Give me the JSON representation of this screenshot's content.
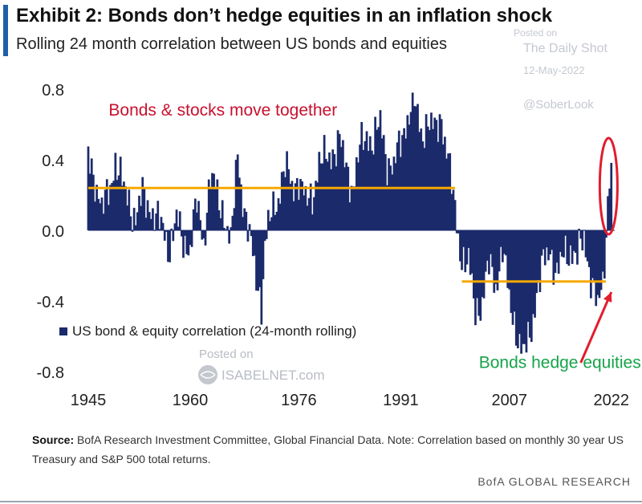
{
  "header": {
    "title": "Exhibit 2: Bonds don’t hedge equities in an inflation shock",
    "subtitle": "Rolling 24 month correlation between US bonds and equities"
  },
  "watermarks": {
    "posted_on": "Posted on",
    "site": "The Daily Shot",
    "date": "12-May-2022",
    "handle": "@SoberLook",
    "posted_on_2": "Posted on",
    "isabelnet": "ISABELNET.com"
  },
  "chart_data": {
    "type": "bar",
    "title": "Rolling 24 month correlation between US bonds and equities",
    "ylim": [
      -0.8,
      0.8
    ],
    "yticks": [
      0.8,
      0.4,
      0.0,
      -0.4,
      -0.8
    ],
    "ytick_labels": [
      "0.8",
      "0.4",
      "0.0",
      "-0.4",
      "-0.8"
    ],
    "xlim": [
      1945,
      2022.5
    ],
    "xticks": [
      1945,
      1960,
      1976,
      1991,
      2007,
      2022
    ],
    "xtick_labels": [
      "1945",
      "1960",
      "1976",
      "1991",
      "2007",
      "2022"
    ],
    "legend": "US bond & equity correlation (24-month rolling)",
    "bar_color": "#1b2a6b",
    "step_years": 0.25,
    "series": [
      {
        "name": "US bond & equity correlation (24-month rolling)",
        "keyframes": [
          [
            1945,
            0.42
          ],
          [
            1946,
            0.3
          ],
          [
            1947,
            0.1
          ],
          [
            1948,
            0.22
          ],
          [
            1949,
            0.4
          ],
          [
            1950,
            0.25
          ],
          [
            1951,
            0.18
          ],
          [
            1952,
            0.05
          ],
          [
            1953,
            0.2
          ],
          [
            1954,
            0.15
          ],
          [
            1955,
            0.05
          ],
          [
            1956,
            0.02
          ],
          [
            1957,
            -0.1
          ],
          [
            1958,
            0.05
          ],
          [
            1959,
            -0.05
          ],
          [
            1960,
            -0.1
          ],
          [
            1961,
            0.15
          ],
          [
            1962,
            -0.05
          ],
          [
            1963,
            0.3
          ],
          [
            1964,
            0.2
          ],
          [
            1965,
            0.1
          ],
          [
            1966,
            -0.1
          ],
          [
            1967,
            0.45
          ],
          [
            1968,
            0.1
          ],
          [
            1969,
            -0.1
          ],
          [
            1970,
            -0.3
          ],
          [
            1970.5,
            -0.42
          ],
          [
            1971,
            -0.1
          ],
          [
            1972,
            0.1
          ],
          [
            1973,
            0.2
          ],
          [
            1974,
            0.35
          ],
          [
            1975,
            0.25
          ],
          [
            1976,
            0.3
          ],
          [
            1977,
            0.15
          ],
          [
            1978,
            0.2
          ],
          [
            1979,
            0.38
          ],
          [
            1980,
            0.4
          ],
          [
            1981,
            0.45
          ],
          [
            1982,
            0.5
          ],
          [
            1983,
            0.35
          ],
          [
            1984,
            0.25
          ],
          [
            1985,
            0.45
          ],
          [
            1986,
            0.55
          ],
          [
            1987,
            0.5
          ],
          [
            1988,
            0.6
          ],
          [
            1989,
            0.4
          ],
          [
            1990,
            0.35
          ],
          [
            1991,
            0.5
          ],
          [
            1992,
            0.65
          ],
          [
            1993,
            0.72
          ],
          [
            1994,
            0.55
          ],
          [
            1995,
            0.62
          ],
          [
            1996,
            0.55
          ],
          [
            1997,
            0.65
          ],
          [
            1998,
            0.4
          ],
          [
            1999,
            0.1
          ],
          [
            2000,
            -0.15
          ],
          [
            2001,
            -0.2
          ],
          [
            2002,
            -0.45
          ],
          [
            2003,
            -0.4
          ],
          [
            2004,
            -0.2
          ],
          [
            2005,
            -0.3
          ],
          [
            2006,
            -0.1
          ],
          [
            2007,
            -0.4
          ],
          [
            2008,
            -0.55
          ],
          [
            2009,
            -0.72
          ],
          [
            2010,
            -0.6
          ],
          [
            2011,
            -0.35
          ],
          [
            2012,
            -0.2
          ],
          [
            2013,
            -0.1
          ],
          [
            2014,
            -0.25
          ],
          [
            2015,
            -0.15
          ],
          [
            2016,
            -0.1
          ],
          [
            2017,
            -0.15
          ],
          [
            2018,
            -0.05
          ],
          [
            2019,
            -0.25
          ],
          [
            2020,
            -0.45
          ],
          [
            2020.8,
            -0.3
          ],
          [
            2021.3,
            0.05
          ],
          [
            2021.8,
            0.35
          ],
          [
            2022.2,
            0.38
          ]
        ]
      }
    ],
    "reference_lines": [
      {
        "label": "Bonds & stocks move together",
        "y": 0.24,
        "x_start": 1945,
        "x_end": 1999,
        "color": "#f5a800"
      },
      {
        "label": "Bonds hedge equities",
        "y": -0.29,
        "x_start": 2000,
        "x_end": 2021.2,
        "color": "#f5a800"
      }
    ],
    "annotations": [
      {
        "text": "Bonds & stocks move together",
        "color": "#c8102e",
        "anchor_x": 1948,
        "anchor_y": 0.65
      },
      {
        "text": "Bonds hedge equities",
        "color": "#16a34a",
        "anchor_x": 2002.5,
        "anchor_y": -0.78
      }
    ],
    "highlight": {
      "shape": "ellipse",
      "color": "#e11d2e",
      "x": 2021.6,
      "y": 0.25
    },
    "arrow": {
      "color": "#e11d2e",
      "from": [
        2017.5,
        -0.75
      ],
      "to": [
        2022,
        -0.35
      ]
    }
  },
  "source": {
    "label": "Source:",
    "text": "BofA Research Investment Committee, Global Financial Data. Note: Correlation based on monthly 30 year US Treasury and S&P 500 total returns."
  },
  "footer": "BofA GLOBAL RESEARCH"
}
